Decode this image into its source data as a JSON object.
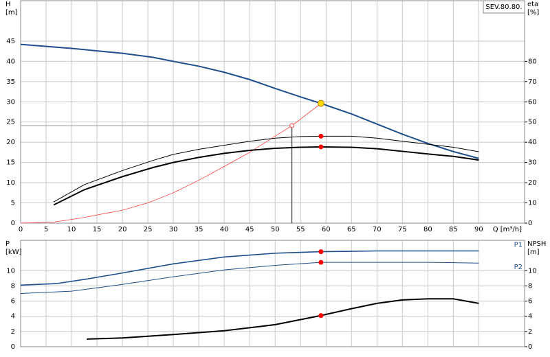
{
  "chart_data": [
    {
      "type": "line",
      "title": "SEV.80.80.",
      "ylabel": "H",
      "ylabel_unit": "[m]",
      "y2label": "eta",
      "y2label_unit": "[%]",
      "xlabel": "Q [m³/h]",
      "xlim": [
        0,
        99
      ],
      "xticks": [
        0,
        5,
        10,
        15,
        20,
        25,
        30,
        35,
        40,
        45,
        50,
        55,
        60,
        65,
        70,
        75,
        80,
        85,
        90
      ],
      "ylim": [
        0,
        55
      ],
      "yticks": [
        0,
        5,
        10,
        15,
        20,
        25,
        30,
        35,
        40,
        45
      ],
      "y2lim": [
        0,
        110
      ],
      "y2ticks": [
        0,
        10,
        20,
        30,
        40,
        50,
        60,
        70,
        80
      ],
      "grid": true,
      "series": [
        {
          "color": "#1f4e8c",
          "width": 2,
          "axis": "y",
          "x": [
            0,
            10,
            20,
            26,
            30,
            35,
            40,
            45,
            50,
            55,
            59,
            65,
            70,
            75,
            80,
            85,
            90
          ],
          "values": [
            44.2,
            43.2,
            42,
            41,
            40,
            38.8,
            37.3,
            35.5,
            33.3,
            31.2,
            29.6,
            27,
            24.5,
            22,
            19.7,
            17.7,
            16
          ]
        },
        {
          "color": "#ff4040",
          "width": 0.8,
          "axis": "y",
          "x": [
            0,
            6.7,
            12,
            20,
            25,
            30,
            35,
            40,
            45,
            50,
            53.3,
            59
          ],
          "values": [
            0,
            0.3,
            1.3,
            3.2,
            5,
            7.5,
            10.6,
            14,
            17.5,
            21.5,
            24.1,
            29.6
          ]
        },
        {
          "color": "#000000",
          "width": 1,
          "axis": "y2",
          "x": [
            6.5,
            12.5,
            20,
            26,
            30,
            35,
            40,
            45,
            50,
            55,
            59,
            65,
            70,
            75,
            80,
            85,
            90
          ],
          "values": [
            10.5,
            19,
            26,
            31,
            34,
            36.5,
            38.5,
            40.5,
            42,
            42.8,
            43,
            43,
            42,
            40.5,
            39,
            37.5,
            35.3
          ]
        },
        {
          "color": "#000000",
          "width": 2,
          "axis": "y2",
          "x": [
            6.5,
            12.5,
            20,
            26,
            30,
            35,
            40,
            45,
            50,
            55,
            59,
            65,
            70,
            75,
            80,
            85,
            90
          ],
          "values": [
            9,
            16.5,
            23,
            27.5,
            30,
            32.5,
            34.5,
            36,
            37,
            37.5,
            37.7,
            37.5,
            36.8,
            35.5,
            34.2,
            33,
            31.2
          ]
        }
      ],
      "markers": [
        {
          "x": 59,
          "y": 29.6,
          "axis": "y",
          "color": "#ffd700"
        },
        {
          "x": 59,
          "y": 43,
          "axis": "y2",
          "color": "#ff0000"
        },
        {
          "x": 59,
          "y": 37.7,
          "axis": "y2",
          "color": "#ff0000"
        }
      ],
      "duty_point": {
        "x": 53.3,
        "y": 24.1
      }
    },
    {
      "type": "line",
      "ylabel": "P",
      "ylabel_unit": "[kW]",
      "y2label": "NPSH",
      "y2label_unit": "[m]",
      "xlim": [
        0,
        99
      ],
      "xticks": [
        0,
        5,
        10,
        15,
        20,
        25,
        30,
        35,
        40,
        45,
        50,
        55,
        60,
        65,
        70,
        75,
        80,
        85,
        90
      ],
      "ylim": [
        0,
        14
      ],
      "yticks": [
        0,
        2,
        4,
        6,
        8,
        10
      ],
      "y2lim": [
        0,
        14
      ],
      "y2ticks": [
        0,
        2,
        4,
        6,
        8,
        10
      ],
      "grid": true,
      "series": [
        {
          "name": "P1",
          "color": "#1f4e8c",
          "width": 1.6,
          "axis": "y",
          "x": [
            0,
            7,
            13,
            20,
            30,
            40,
            50,
            59,
            70,
            80,
            90
          ],
          "values": [
            8.1,
            8.3,
            8.9,
            9.7,
            10.9,
            11.8,
            12.3,
            12.5,
            12.6,
            12.6,
            12.6
          ]
        },
        {
          "name": "P2",
          "color": "#1f4e8c",
          "width": 1,
          "axis": "y",
          "x": [
            0,
            10,
            20,
            30,
            40,
            50,
            59,
            70,
            80,
            90
          ],
          "values": [
            7,
            7.3,
            8.2,
            9.2,
            10.1,
            10.7,
            11.1,
            11.1,
            11.1,
            11
          ]
        },
        {
          "color": "#000000",
          "width": 2,
          "axis": "y2",
          "x": [
            13,
            20,
            30,
            40,
            50,
            59,
            65,
            70,
            75,
            80,
            85,
            90
          ],
          "values": [
            1,
            1.15,
            1.6,
            2.1,
            2.9,
            4.1,
            5,
            5.7,
            6.15,
            6.3,
            6.3,
            5.7
          ]
        }
      ],
      "markers": [
        {
          "x": 59,
          "y": 12.5,
          "axis": "y",
          "color": "#ff0000"
        },
        {
          "x": 59,
          "y": 11.1,
          "axis": "y",
          "color": "#ff0000"
        },
        {
          "x": 59,
          "y": 4.1,
          "axis": "y2",
          "color": "#ff0000"
        }
      ]
    }
  ]
}
